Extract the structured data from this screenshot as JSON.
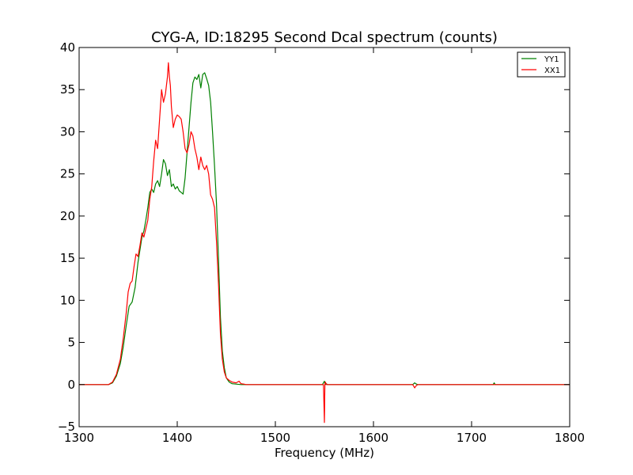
{
  "chart_data": {
    "type": "line",
    "title": "CYG-A, ID:18295 Second Dcal spectrum (counts)",
    "xlabel": "Frequency (MHz)",
    "ylabel": "",
    "xlim": [
      1300,
      1800
    ],
    "ylim": [
      -5,
      40
    ],
    "xticks": [
      "1300",
      "1400",
      "1500",
      "1600",
      "1700",
      "1800"
    ],
    "yticks": [
      "−5",
      "0",
      "5",
      "10",
      "15",
      "20",
      "25",
      "30",
      "35",
      "40"
    ],
    "grid": false,
    "legend_position": "top-right",
    "series": [
      {
        "name": "YY1",
        "color": "#008000",
        "x": [
          1300,
          1330,
          1334,
          1338,
          1342,
          1345,
          1348,
          1351,
          1354,
          1357,
          1360,
          1362,
          1364,
          1366,
          1368,
          1370,
          1372,
          1374,
          1376,
          1378,
          1380,
          1382,
          1384,
          1386,
          1388,
          1390,
          1392,
          1394,
          1396,
          1398,
          1400,
          1402,
          1404,
          1406,
          1408,
          1410,
          1412,
          1414,
          1416,
          1418,
          1420,
          1422,
          1424,
          1426,
          1428,
          1430,
          1432,
          1434,
          1436,
          1438,
          1440,
          1442,
          1444,
          1446,
          1448,
          1450,
          1453,
          1456,
          1460,
          1465,
          1470,
          1480,
          1500,
          1548,
          1550,
          1551,
          1552,
          1553,
          1555,
          1600,
          1640,
          1642,
          1643,
          1645,
          1650,
          1700,
          1722,
          1723,
          1724,
          1800
        ],
        "y": [
          0,
          0,
          0.2,
          1,
          2.5,
          4.5,
          7,
          9.3,
          9.8,
          11.5,
          14.5,
          16,
          17.5,
          18.2,
          19.5,
          21,
          22.8,
          23.2,
          22.8,
          23.8,
          24.2,
          23.5,
          25,
          26.7,
          26.2,
          24.8,
          25.5,
          23.5,
          23.8,
          23.2,
          23.5,
          23,
          22.8,
          22.6,
          24.5,
          27.5,
          30.5,
          33.5,
          35.8,
          36.5,
          36.2,
          36.8,
          35.2,
          36.8,
          37,
          36.3,
          35.5,
          33.5,
          30,
          26,
          21.5,
          15,
          8,
          4,
          2,
          0.8,
          0.3,
          0.1,
          0.05,
          0,
          0,
          0,
          0,
          0,
          0.4,
          0,
          0.1,
          0,
          0,
          0,
          0,
          0.2,
          0.1,
          0,
          0,
          0,
          0,
          0.2,
          0,
          0
        ]
      },
      {
        "name": "XX1",
        "color": "#ff0000",
        "x": [
          1300,
          1330,
          1334,
          1338,
          1342,
          1345,
          1348,
          1350,
          1352,
          1354,
          1356,
          1358,
          1360,
          1362,
          1364,
          1366,
          1368,
          1370,
          1372,
          1374,
          1376,
          1378,
          1380,
          1382,
          1384,
          1386,
          1388,
          1390,
          1391,
          1392,
          1393,
          1394,
          1396,
          1398,
          1400,
          1402,
          1404,
          1406,
          1408,
          1410,
          1412,
          1414,
          1416,
          1418,
          1420,
          1422,
          1424,
          1426,
          1428,
          1430,
          1432,
          1434,
          1436,
          1438,
          1440,
          1442,
          1444,
          1446,
          1448,
          1450,
          1453,
          1456,
          1460,
          1463,
          1465,
          1468,
          1470,
          1480,
          1500,
          1549,
          1550,
          1550.5,
          1551,
          1552,
          1555,
          1600,
          1640,
          1642,
          1643,
          1645,
          1650,
          1700,
          1800
        ],
        "y": [
          0,
          0,
          0.3,
          1.2,
          3,
          5.5,
          8.5,
          11,
          12,
          12.3,
          14,
          15.5,
          15.2,
          16.5,
          18,
          17.5,
          18.5,
          19.5,
          22,
          23.5,
          26.5,
          29,
          28,
          31.5,
          35,
          33.5,
          34.5,
          36.5,
          38.2,
          36.5,
          35.5,
          33,
          30.5,
          31.5,
          32,
          31.8,
          31.5,
          30,
          28,
          27.5,
          28.5,
          30,
          29.5,
          28,
          27,
          25.5,
          27,
          26,
          25.5,
          26,
          25,
          22.5,
          22,
          21,
          17,
          12,
          6,
          3,
          1.5,
          0.8,
          0.5,
          0.3,
          0.2,
          0.4,
          0.1,
          0.05,
          0,
          0,
          0,
          0,
          -4.5,
          0,
          0.3,
          0,
          0,
          0,
          0,
          -0.4,
          -0.2,
          0,
          0,
          0,
          0
        ]
      }
    ]
  }
}
